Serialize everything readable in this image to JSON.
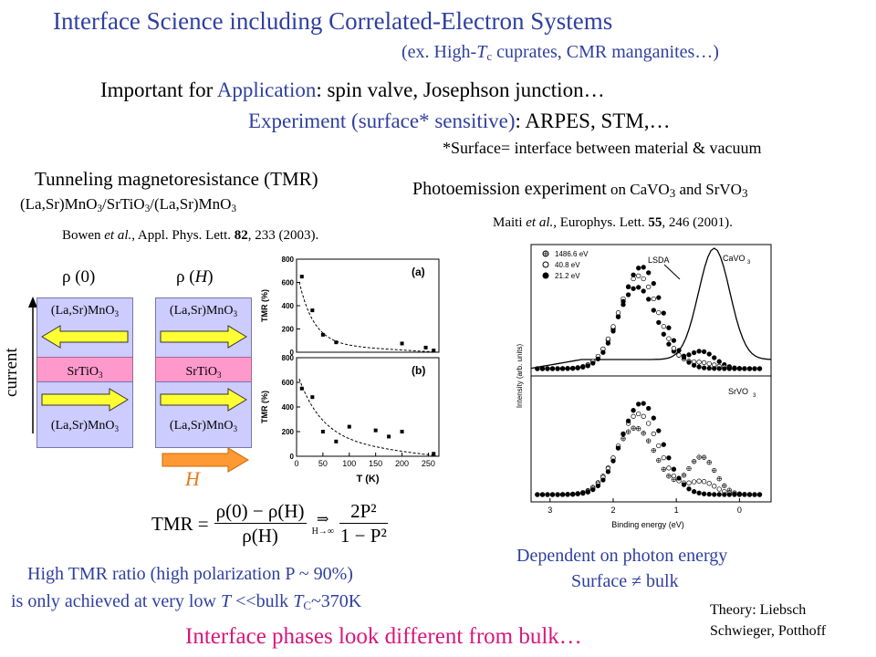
{
  "title": "Interface Science including Correlated-Electron Systems",
  "subtitle_prefix": "(ex. High-",
  "subtitle_T": "T",
  "subtitle_sub": "c",
  "subtitle_rest": " cuprates, CMR manganites…)",
  "important_pre": "Important for ",
  "important_app": "Application",
  "important_rest": ": spin valve, Josephson junction…",
  "experiment_colored": "Experiment (surface* sensitive)",
  "experiment_rest": ": ARPES, STM,…",
  "surface_note": "*Surface= interface between material & vacuum",
  "tmr_title": "Tunneling magnetoresistance (TMR)",
  "tmr_formula": {
    "p1": "(La,Sr)MnO",
    "s1": "3",
    "p2": "/SrTiO",
    "s2": "3",
    "p3": "/(La,Sr)MnO",
    "s3": "3"
  },
  "bowen_ref": {
    "author": "Bowen ",
    "etal": "et al.",
    "journal": ", Appl. Phys. Lett. ",
    "vol": "82",
    "rest": ", 233 (2003)."
  },
  "pes_title": {
    "main": "Photoemission experiment",
    "rest": " on CaVO",
    "s1": "3",
    "and": " and SrVO",
    "s2": "3"
  },
  "maiti_ref": {
    "author": "Maiti ",
    "etal": "et al.",
    "journal": ", Europhys. Lett. ",
    "vol": "55",
    "rest": ", 246 (2001)."
  },
  "diagram": {
    "rho0": "ρ (0)",
    "rhoH_pre": "ρ (",
    "rhoH_H": "H",
    "rhoH_post": ")",
    "manganite": "(La,Sr)MnO",
    "manganite_sub": "3",
    "srtio": "SrTiO",
    "srtio_sub": "3",
    "current": "current",
    "field": "H"
  },
  "formula": {
    "lhs": "TMR =",
    "num": "ρ(0) − ρ(H)",
    "den": "ρ(H)",
    "lim": "H→∞",
    "num2": "2P²",
    "den2": "1 − P²"
  },
  "high_tmr_1": "High TMR ratio (high polarization P ~ 90%)",
  "high_tmr_2_pre": "is only achieved at very low ",
  "high_tmr_2_T": "T",
  "high_tmr_2_mid": " <<bulk ",
  "high_tmr_2_TC": "T",
  "high_tmr_2_C": "C",
  "high_tmr_2_rest": "~370K",
  "dependent": "Dependent on photon energy",
  "surface_bulk": "Surface ≠ bulk",
  "theory_1": "Theory: Liebsch",
  "theory_2": "Schwieger, Potthoff",
  "conclusion": "Interface phases look different from bulk…",
  "chart_tmr": {
    "ylabel": "TMR (%)",
    "xlabel": "T (K)",
    "xticks": [
      "0",
      "50",
      "100",
      "150",
      "200",
      "250"
    ],
    "panel_a": {
      "label": "(a)",
      "yticks": [
        "800",
        "600",
        "400",
        "200",
        "0"
      ],
      "points": [
        [
          10,
          650
        ],
        [
          30,
          360
        ],
        [
          50,
          150
        ],
        [
          75,
          85
        ],
        [
          200,
          75
        ],
        [
          245,
          40
        ],
        [
          260,
          15
        ]
      ]
    },
    "panel_b": {
      "label": "(b)",
      "yticks": [
        "800",
        "600",
        "400",
        "200",
        "0"
      ],
      "points": [
        [
          10,
          550
        ],
        [
          30,
          480
        ],
        [
          50,
          200
        ],
        [
          75,
          120
        ],
        [
          100,
          240
        ],
        [
          150,
          210
        ],
        [
          175,
          160
        ],
        [
          200,
          200
        ],
        [
          260,
          20
        ]
      ]
    }
  },
  "chart_pes": {
    "ylabel": "Intensity (arb. units)",
    "xlabel": "Binding energy (eV)",
    "xticks": [
      "3",
      "2",
      "1",
      "0"
    ],
    "legend": [
      "1486.6 eV",
      "40.8 eV",
      "21.2 eV"
    ],
    "lsda": "LSDA",
    "top_label": "CaVO",
    "top_sub": "3",
    "bottom_label": "SrVO",
    "bottom_sub": "3"
  }
}
